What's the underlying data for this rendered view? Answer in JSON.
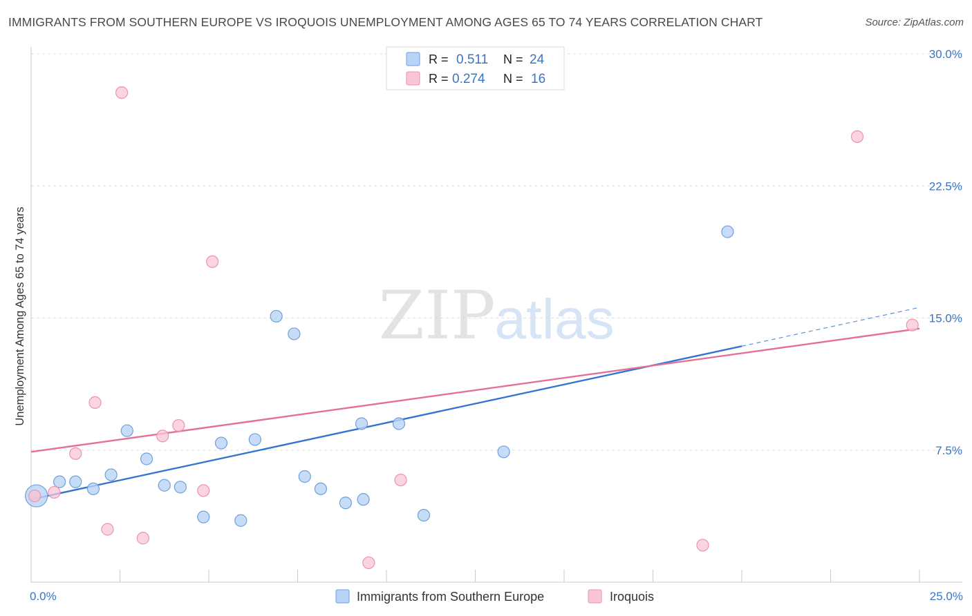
{
  "header": {
    "title": "IMMIGRANTS FROM SOUTHERN EUROPE VS IROQUOIS UNEMPLOYMENT AMONG AGES 65 TO 74 YEARS CORRELATION CHART",
    "source": "Source: ZipAtlas.com"
  },
  "watermark": {
    "zip": "ZIP",
    "atlas": "atlas"
  },
  "legend": {
    "rows": [
      {
        "r_label": "R =",
        "r_value": "0.511",
        "n_label": "N =",
        "n_value": "24"
      },
      {
        "r_label": "R =",
        "r_value": "0.274",
        "n_label": "N =",
        "n_value": "16"
      }
    ]
  },
  "colors": {
    "blue_fill": "#b9d3f5",
    "blue_stroke": "#6f9fdc",
    "blue_line": "#3374d0",
    "pink_fill": "#f8c6d5",
    "pink_stroke": "#ec93ad",
    "pink_line": "#e4709a",
    "tick_text": "#3a74c4"
  },
  "chart_data": {
    "type": "scatter",
    "title": "IMMIGRANTS FROM SOUTHERN EUROPE VS IROQUOIS UNEMPLOYMENT AMONG AGES 65 TO 74 YEARS CORRELATION CHART",
    "xlabel": "",
    "ylabel": "Unemployment Among Ages 65 to 74 years",
    "xlim": [
      0,
      25
    ],
    "ylim": [
      0,
      30
    ],
    "x_tick_labels": [
      "0.0%",
      "25.0%"
    ],
    "y_ticks": [
      7.5,
      15.0,
      22.5,
      30.0
    ],
    "y_tick_labels": [
      "7.5%",
      "15.0%",
      "22.5%",
      "30.0%"
    ],
    "series": [
      {
        "name": "Immigrants from Southern Europe",
        "color": "#b9d3f5",
        "points": [
          {
            "x": 0.15,
            "y": 4.9,
            "big": true
          },
          {
            "x": 0.8,
            "y": 5.7
          },
          {
            "x": 1.25,
            "y": 5.7
          },
          {
            "x": 1.75,
            "y": 5.3
          },
          {
            "x": 2.25,
            "y": 6.1
          },
          {
            "x": 2.7,
            "y": 8.6
          },
          {
            "x": 3.25,
            "y": 7.0
          },
          {
            "x": 3.75,
            "y": 5.5
          },
          {
            "x": 4.2,
            "y": 5.4
          },
          {
            "x": 4.85,
            "y": 3.7
          },
          {
            "x": 5.35,
            "y": 7.9
          },
          {
            "x": 5.9,
            "y": 3.5
          },
          {
            "x": 6.3,
            "y": 8.1
          },
          {
            "x": 6.9,
            "y": 15.1
          },
          {
            "x": 7.4,
            "y": 14.1
          },
          {
            "x": 7.7,
            "y": 6.0
          },
          {
            "x": 8.15,
            "y": 5.3
          },
          {
            "x": 8.85,
            "y": 4.5
          },
          {
            "x": 9.3,
            "y": 9.0
          },
          {
            "x": 9.35,
            "y": 4.7
          },
          {
            "x": 10.35,
            "y": 9.0
          },
          {
            "x": 11.05,
            "y": 3.8
          },
          {
            "x": 13.3,
            "y": 7.4
          },
          {
            "x": 19.6,
            "y": 19.9
          }
        ],
        "trend": {
          "x0": 0,
          "y0": 4.7,
          "x1": 20.0,
          "y1": 13.4,
          "dash_to_x": 25.0,
          "dash_to_y": 15.6
        }
      },
      {
        "name": "Iroquois",
        "color": "#f8c6d5",
        "points": [
          {
            "x": 0.1,
            "y": 4.9
          },
          {
            "x": 0.65,
            "y": 5.1
          },
          {
            "x": 1.25,
            "y": 7.3
          },
          {
            "x": 1.8,
            "y": 10.2
          },
          {
            "x": 2.15,
            "y": 3.0
          },
          {
            "x": 2.55,
            "y": 27.8
          },
          {
            "x": 3.15,
            "y": 2.5
          },
          {
            "x": 3.7,
            "y": 8.3
          },
          {
            "x": 4.15,
            "y": 8.9
          },
          {
            "x": 4.85,
            "y": 5.2
          },
          {
            "x": 5.1,
            "y": 18.2
          },
          {
            "x": 9.5,
            "y": 1.1
          },
          {
            "x": 10.4,
            "y": 5.8
          },
          {
            "x": 18.9,
            "y": 2.1
          },
          {
            "x": 23.25,
            "y": 25.3
          },
          {
            "x": 24.8,
            "y": 14.6
          }
        ],
        "trend": {
          "x0": 0,
          "y0": 7.4,
          "x1": 25.0,
          "y1": 14.4
        }
      }
    ]
  }
}
